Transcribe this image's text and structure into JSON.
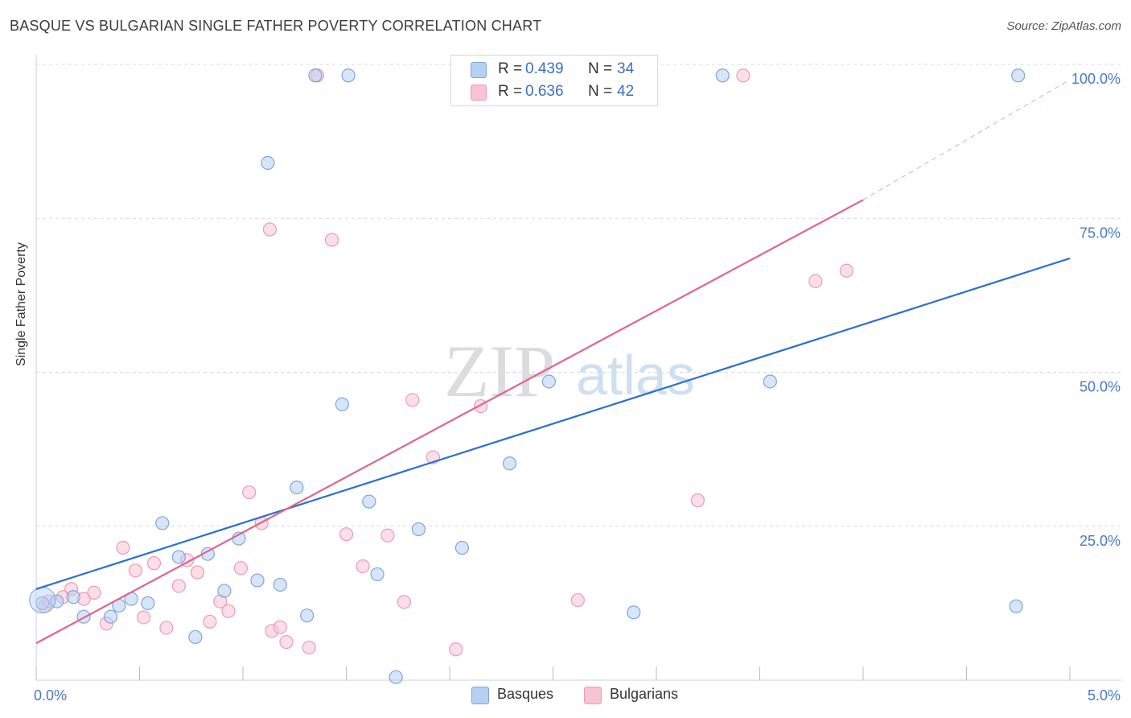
{
  "title": "BASQUE VS BULGARIAN SINGLE FATHER POVERTY CORRELATION CHART",
  "source": "Source: ZipAtlas.com",
  "watermark": {
    "zip": "ZIP",
    "atlas": "atlas"
  },
  "legend": {
    "r_label": "R =",
    "n_label": "N =",
    "series": [
      {
        "r": "0.439",
        "n": "34"
      },
      {
        "r": "0.636",
        "n": "42"
      }
    ]
  },
  "bottom_legend": [
    "Basques",
    "Bulgarians"
  ],
  "colors": {
    "basques_fill": "#b7d0f2",
    "basques_stroke": "#7ea6dc",
    "basques_line": "#2c6fd0",
    "bulgarians_fill": "#f8c3d3",
    "bulgarians_stroke": "#ec9bb6",
    "bulgarians_line": "#e0648f",
    "tick_text": "#4a78c8",
    "grid": "#d8d8d8"
  },
  "chart_data": {
    "type": "scatter",
    "title": "BASQUE VS BULGARIAN SINGLE FATHER POVERTY CORRELATION CHART",
    "xlabel": "",
    "ylabel": "Single Father Poverty",
    "xlim": [
      0,
      5.0
    ],
    "ylim": [
      0,
      100
    ],
    "x_tick_labels": [
      "0.0%",
      "5.0%"
    ],
    "y_ticks": [
      25,
      50,
      75,
      100
    ],
    "y_tick_labels": [
      "25.0%",
      "50.0%",
      "75.0%",
      "100.0%"
    ],
    "grid": "horizontal dashed",
    "series": [
      {
        "name": "Basques",
        "r": 0.439,
        "n": 34,
        "trend": {
          "x0": 0,
          "y0": 14.8,
          "x1": 5.0,
          "y1": 68.5,
          "dashed_from": null
        },
        "points": [
          [
            0.03,
            12.5
          ],
          [
            0.1,
            12.8
          ],
          [
            0.18,
            13.5
          ],
          [
            0.23,
            10.3
          ],
          [
            0.36,
            10.3
          ],
          [
            0.4,
            12.1
          ],
          [
            0.46,
            13.2
          ],
          [
            0.54,
            12.5
          ],
          [
            0.61,
            25.5
          ],
          [
            0.69,
            20.0
          ],
          [
            0.77,
            7.0
          ],
          [
            0.83,
            20.5
          ],
          [
            0.91,
            14.5
          ],
          [
            0.98,
            23.0
          ],
          [
            1.07,
            16.2
          ],
          [
            1.12,
            84.0
          ],
          [
            1.18,
            15.5
          ],
          [
            1.26,
            31.3
          ],
          [
            1.31,
            10.5
          ],
          [
            1.35,
            98.2
          ],
          [
            1.48,
            44.8
          ],
          [
            1.51,
            98.2
          ],
          [
            1.61,
            29.0
          ],
          [
            1.65,
            17.2
          ],
          [
            1.74,
            0.5
          ],
          [
            1.85,
            24.5
          ],
          [
            2.06,
            21.5
          ],
          [
            2.29,
            35.2
          ],
          [
            2.48,
            48.5
          ],
          [
            2.89,
            11.0
          ],
          [
            3.32,
            98.2
          ],
          [
            3.55,
            48.5
          ],
          [
            4.74,
            12.0
          ],
          [
            4.75,
            98.2
          ]
        ]
      },
      {
        "name": "Bulgarians",
        "r": 0.636,
        "n": 42,
        "trend": {
          "x0": 0,
          "y0": 6.0,
          "x1": 4.0,
          "y1": 78.0,
          "dashed_to": [
            5.0,
            97.5
          ]
        },
        "points": [
          [
            0.04,
            12.0
          ],
          [
            0.13,
            13.5
          ],
          [
            0.17,
            14.8
          ],
          [
            0.23,
            13.2
          ],
          [
            0.28,
            14.2
          ],
          [
            0.34,
            9.2
          ],
          [
            0.42,
            21.5
          ],
          [
            0.48,
            17.8
          ],
          [
            0.52,
            10.2
          ],
          [
            0.57,
            19.0
          ],
          [
            0.63,
            8.5
          ],
          [
            0.69,
            15.3
          ],
          [
            0.73,
            19.5
          ],
          [
            0.78,
            17.5
          ],
          [
            0.84,
            9.5
          ],
          [
            0.89,
            12.8
          ],
          [
            0.93,
            11.2
          ],
          [
            0.99,
            18.2
          ],
          [
            1.03,
            30.5
          ],
          [
            1.09,
            25.5
          ],
          [
            1.14,
            8.0
          ],
          [
            1.18,
            8.6
          ],
          [
            1.21,
            6.2
          ],
          [
            1.32,
            5.3
          ],
          [
            1.36,
            98.2
          ],
          [
            1.43,
            71.5
          ],
          [
            1.5,
            23.7
          ],
          [
            1.58,
            18.5
          ],
          [
            1.7,
            23.5
          ],
          [
            1.78,
            12.7
          ],
          [
            1.82,
            45.5
          ],
          [
            1.92,
            36.2
          ],
          [
            2.03,
            5.0
          ],
          [
            2.15,
            44.5
          ],
          [
            2.34,
            98.2
          ],
          [
            3.2,
            29.2
          ],
          [
            3.42,
            98.2
          ],
          [
            3.77,
            64.8
          ],
          [
            3.92,
            66.5
          ],
          [
            1.13,
            73.2
          ],
          [
            2.62,
            13.0
          ],
          [
            0.06,
            12.8
          ]
        ]
      }
    ]
  }
}
